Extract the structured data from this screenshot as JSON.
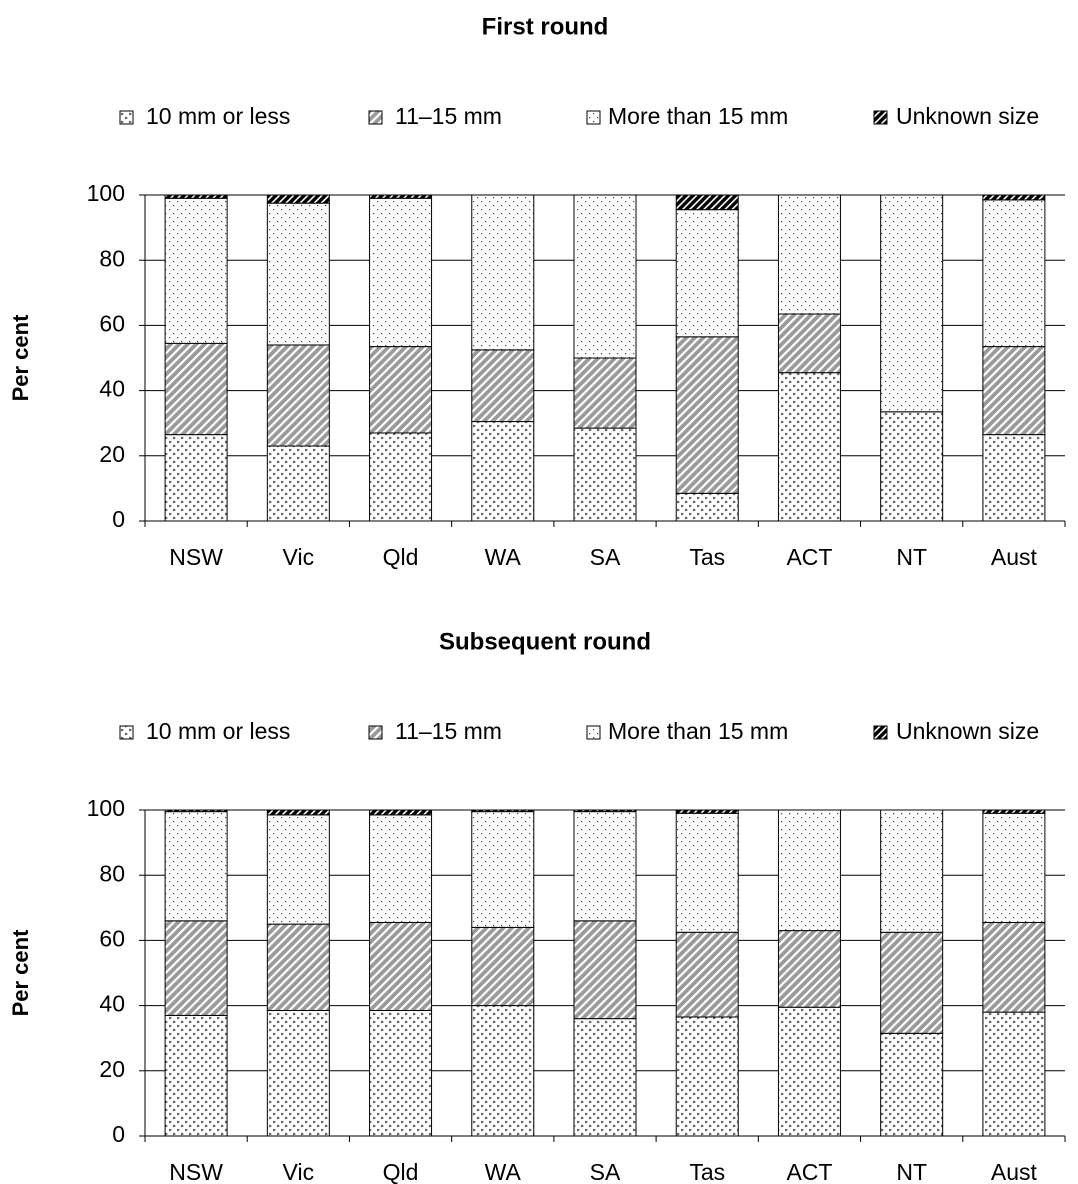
{
  "chart_data": [
    {
      "type": "stacked-bar",
      "title": "First round",
      "ylabel": "Per cent",
      "categories": [
        "NSW",
        "Vic",
        "Qld",
        "WA",
        "SA",
        "Tas",
        "ACT",
        "NT",
        "Aust"
      ],
      "ylim": [
        0,
        100
      ],
      "yticks": [
        0,
        20,
        40,
        60,
        80,
        100
      ],
      "grid": true,
      "series": [
        {
          "name": "10 mm or less",
          "color": "#ffffff",
          "pattern": "checker",
          "values": [
            26.5,
            23,
            27,
            30.5,
            28.5,
            8.5,
            45.5,
            33.5,
            26.5
          ]
        },
        {
          "name": "11–15 mm",
          "color": "#9a9a9a",
          "pattern": "diagonal",
          "values": [
            28,
            31,
            26.5,
            22,
            21.5,
            48,
            18,
            0,
            27
          ]
        },
        {
          "name": "More than 15 mm",
          "color": "#ffffff",
          "pattern": "dots",
          "values": [
            44.5,
            43.5,
            45.5,
            47.5,
            50,
            39,
            36.5,
            66.5,
            45
          ]
        },
        {
          "name": "Unknown size",
          "color": "#000000",
          "pattern": "dense-diagonal",
          "values": [
            1,
            2.5,
            1,
            0,
            0,
            4.5,
            0,
            0,
            1.5
          ]
        }
      ]
    },
    {
      "type": "stacked-bar",
      "title": "Subsequent round",
      "ylabel": "Per cent",
      "categories": [
        "NSW",
        "Vic",
        "Qld",
        "WA",
        "SA",
        "Tas",
        "ACT",
        "NT",
        "Aust"
      ],
      "ylim": [
        0,
        100
      ],
      "yticks": [
        0,
        20,
        40,
        60,
        80,
        100
      ],
      "grid": true,
      "series": [
        {
          "name": "10 mm or less",
          "color": "#ffffff",
          "pattern": "checker",
          "values": [
            37,
            38.5,
            38.5,
            40,
            36,
            36.5,
            39.5,
            31.5,
            38
          ]
        },
        {
          "name": "11–15 mm",
          "color": "#9a9a9a",
          "pattern": "diagonal",
          "values": [
            29,
            26.5,
            27,
            24,
            30,
            26,
            23.5,
            31,
            27.5
          ]
        },
        {
          "name": "More than 15 mm",
          "color": "#ffffff",
          "pattern": "dots",
          "values": [
            33.5,
            33.5,
            33,
            35.5,
            33.5,
            36.5,
            37,
            37.5,
            33.5
          ]
        },
        {
          "name": "Unknown size",
          "color": "#000000",
          "pattern": "dense-diagonal",
          "values": [
            0.5,
            1.5,
            1.5,
            0.5,
            0.5,
            1,
            0,
            0,
            1
          ]
        }
      ]
    }
  ]
}
